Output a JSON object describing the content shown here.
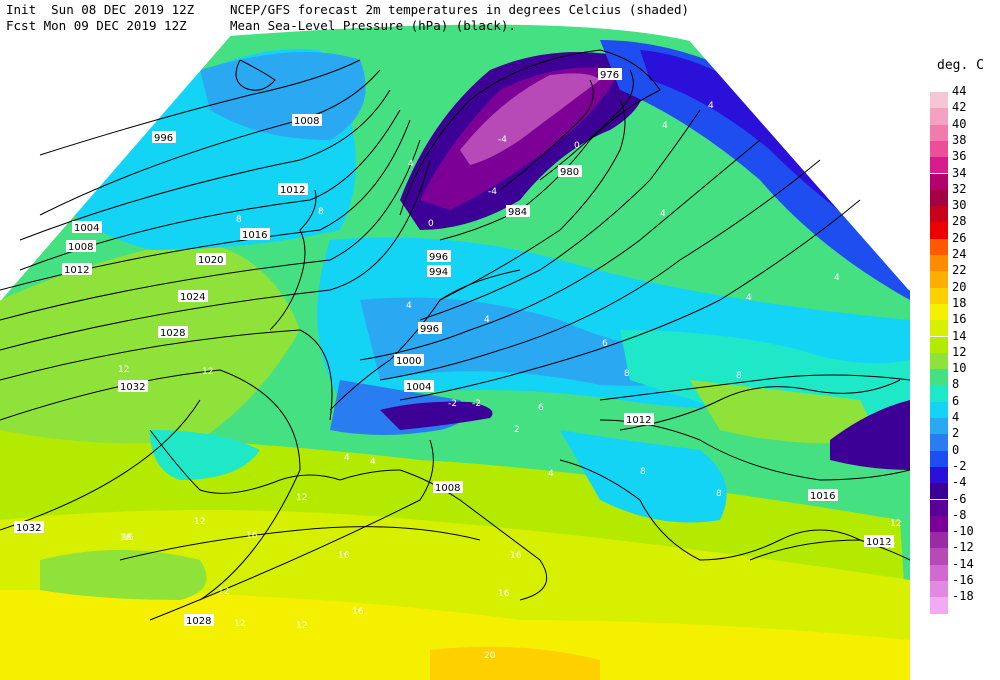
{
  "header": {
    "line1_left": "Init  Sun 08 DEC 2019 12Z",
    "line2_left": "Fcst Mon 09 DEC 2019 12Z",
    "line1_right": "NCEP/GFS forecast 2m temperatures in degrees Celcius (shaded)",
    "line2_right": "Mean Sea-Level Pressure (hPa) (black)."
  },
  "legend": {
    "title": "deg. C",
    "entries": [
      {
        "label": "44",
        "color": "#f6c6d6"
      },
      {
        "label": "42",
        "color": "#f5a2c2"
      },
      {
        "label": "40",
        "color": "#f17cab"
      },
      {
        "label": "38",
        "color": "#ec4f98"
      },
      {
        "label": "36",
        "color": "#d81b8c"
      },
      {
        "label": "34",
        "color": "#b3006b"
      },
      {
        "label": "32",
        "color": "#a5003f"
      },
      {
        "label": "30",
        "color": "#c8001a"
      },
      {
        "label": "28",
        "color": "#ee0000"
      },
      {
        "label": "26",
        "color": "#ff5a00"
      },
      {
        "label": "24",
        "color": "#ff8c00"
      },
      {
        "label": "22",
        "color": "#ffad00"
      },
      {
        "label": "20",
        "color": "#ffd000"
      },
      {
        "label": "18",
        "color": "#f5f000"
      },
      {
        "label": "16",
        "color": "#d7f000"
      },
      {
        "label": "14",
        "color": "#b4ea00"
      },
      {
        "label": "12",
        "color": "#8fe23a"
      },
      {
        "label": "10",
        "color": "#45e082"
      },
      {
        "label": "8",
        "color": "#1ee8c8"
      },
      {
        "label": "6",
        "color": "#14d4f5"
      },
      {
        "label": "4",
        "color": "#2aa8f2"
      },
      {
        "label": "2",
        "color": "#2a7df0"
      },
      {
        "label": "0",
        "color": "#1e4ef0"
      },
      {
        "label": "-2",
        "color": "#2a10d8"
      },
      {
        "label": "-4",
        "color": "#3c0096"
      },
      {
        "label": "-6",
        "color": "#5a0096"
      },
      {
        "label": "-8",
        "color": "#7d0096"
      },
      {
        "label": "-10",
        "color": "#9c2aa5"
      },
      {
        "label": "-12",
        "color": "#b84ab8"
      },
      {
        "label": "-14",
        "color": "#d06ad0"
      },
      {
        "label": "-16",
        "color": "#e28ae2"
      },
      {
        "label": "-18",
        "color": "#f2aaf2"
      }
    ]
  },
  "isobar_labels": [
    "996",
    "1008",
    "1012",
    "1004",
    "1008",
    "1012",
    "1016",
    "1020",
    "1024",
    "1028",
    "1032",
    "1032",
    "1028",
    "1008",
    "1000",
    "1004",
    "996",
    "1012",
    "1016",
    "1012",
    "980",
    "976",
    "984",
    "996",
    "994"
  ],
  "temp_labels": [
    "12",
    "12",
    "12",
    "12",
    "16",
    "16",
    "12",
    "16",
    "16",
    "12",
    "12",
    "16",
    "8",
    "8",
    "8",
    "8",
    "4",
    "4",
    "4",
    "4",
    "4",
    "4",
    "4",
    "4",
    "4",
    "4",
    "0",
    "0",
    "-4",
    "-4",
    "-2",
    "-2",
    "8",
    "8",
    "6",
    "6",
    "4",
    "2",
    "12",
    "12",
    "16",
    "16",
    "20"
  ]
}
